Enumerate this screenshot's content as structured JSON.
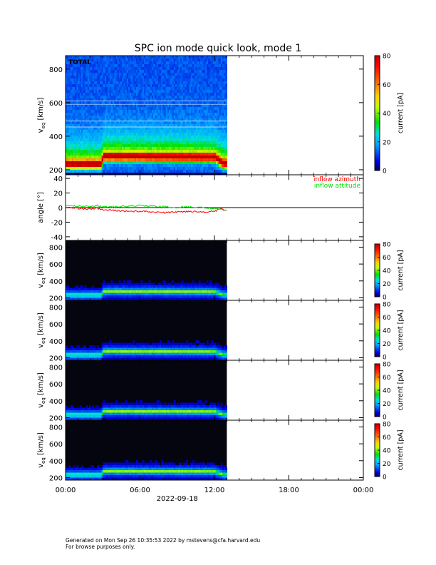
{
  "title": "SPC ion mode quick look, mode 1",
  "footer": {
    "line1": "Generated on Mon Sep 26 10:35:53 2022 by mstevens@cfa.harvard.edu",
    "line2": "For browse purposes only."
  },
  "x_axis": {
    "ticks": [
      "00:00",
      "06:00",
      "12:00",
      "18:00",
      "00:00"
    ],
    "date_label": "2022-09-18",
    "range_hours": [
      0,
      24
    ],
    "data_end_hours": 13.0
  },
  "colorbar": {
    "label": "current [pA]",
    "range": [
      0,
      80
    ],
    "large_ticks": [
      "80",
      "60",
      "40",
      "20",
      "0"
    ],
    "small_ticks": [
      "80",
      "60",
      "40",
      "20",
      "0"
    ]
  },
  "chart_data": [
    {
      "type": "heatmap",
      "panel_label": "TOTAL",
      "ylabel": "v_eq [km/s]",
      "ylabel_main": "v",
      "ylabel_sub": "eq",
      "ylabel_unit": "[km/s]",
      "yticks": [
        "800",
        "600",
        "400",
        "200"
      ],
      "ylim": [
        170,
        880
      ],
      "x_hours": [
        0,
        2.8,
        3.0,
        12.0,
        12.6,
        13.0
      ],
      "peak_speed_kms": [
        245,
        245,
        290,
        285,
        250,
        245
      ],
      "colorscale": "rainbow",
      "zlim": [
        0,
        80
      ]
    },
    {
      "type": "line",
      "ylabel": "angle [°]",
      "yticks": [
        "40",
        "20",
        "0",
        "-20",
        "-40"
      ],
      "ylim": [
        -45,
        45
      ],
      "zero_line": true,
      "legend_placement": "top-right",
      "series": [
        {
          "name": "inflow azimuth",
          "color": "#ff0000",
          "x": [
            0,
            1,
            2,
            2.5,
            3,
            4,
            5,
            6,
            7,
            8,
            9,
            10,
            11,
            12,
            12.5,
            13
          ],
          "y": [
            0,
            -1,
            -2,
            -1,
            -3,
            -4,
            -5,
            -5,
            -6,
            -7,
            -6,
            -5,
            -6,
            -5,
            -2,
            -4
          ]
        },
        {
          "name": "inflow attitude",
          "color": "#00e000",
          "x": [
            0,
            1,
            2,
            2.5,
            3,
            4,
            5,
            6,
            7,
            8,
            9,
            10,
            11,
            12,
            12.5,
            13
          ],
          "y": [
            3,
            2,
            2,
            3,
            1,
            1,
            2,
            3,
            2,
            1,
            0,
            1,
            0,
            -1,
            -3,
            -3
          ]
        }
      ]
    },
    {
      "type": "heatmap",
      "ylabel": "v_eq [km/s]",
      "ylabel_main": "v",
      "ylabel_sub": "eq",
      "ylabel_unit": "[km/s]",
      "yticks": [
        "800",
        "600",
        "400",
        "200"
      ],
      "ylim": [
        170,
        880
      ],
      "x_hours": [
        0,
        2.8,
        3.0,
        12.0,
        12.6,
        13.0
      ],
      "peak_speed_kms": [
        245,
        245,
        290,
        285,
        250,
        245
      ],
      "colorscale": "rainbow",
      "zlim": [
        0,
        80
      ]
    },
    {
      "type": "heatmap",
      "ylabel": "v_eq [km/s]",
      "ylabel_main": "v",
      "ylabel_sub": "eq",
      "ylabel_unit": "[km/s]",
      "yticks": [
        "800",
        "600",
        "400",
        "200"
      ],
      "ylim": [
        170,
        880
      ],
      "x_hours": [
        0,
        2.8,
        3.0,
        12.0,
        12.6,
        13.0
      ],
      "peak_speed_kms": [
        245,
        245,
        290,
        285,
        250,
        245
      ],
      "colorscale": "rainbow",
      "zlim": [
        0,
        80
      ]
    },
    {
      "type": "heatmap",
      "ylabel": "v_eq [km/s]",
      "ylabel_main": "v",
      "ylabel_sub": "eq",
      "ylabel_unit": "[km/s]",
      "yticks": [
        "800",
        "600",
        "400",
        "200"
      ],
      "ylim": [
        170,
        880
      ],
      "x_hours": [
        0,
        2.8,
        3.0,
        12.0,
        12.6,
        13.0
      ],
      "peak_speed_kms": [
        245,
        245,
        290,
        285,
        250,
        245
      ],
      "colorscale": "rainbow",
      "zlim": [
        0,
        80
      ]
    },
    {
      "type": "heatmap",
      "ylabel": "v_eq [km/s]",
      "ylabel_main": "v",
      "ylabel_sub": "eq",
      "ylabel_unit": "[km/s]",
      "yticks": [
        "800",
        "600",
        "400",
        "200"
      ],
      "ylim": [
        170,
        880
      ],
      "x_hours": [
        0,
        2.8,
        3.0,
        12.0,
        12.6,
        13.0
      ],
      "peak_speed_kms": [
        245,
        245,
        290,
        285,
        250,
        245
      ],
      "colorscale": "rainbow",
      "zlim": [
        0,
        80
      ]
    }
  ]
}
